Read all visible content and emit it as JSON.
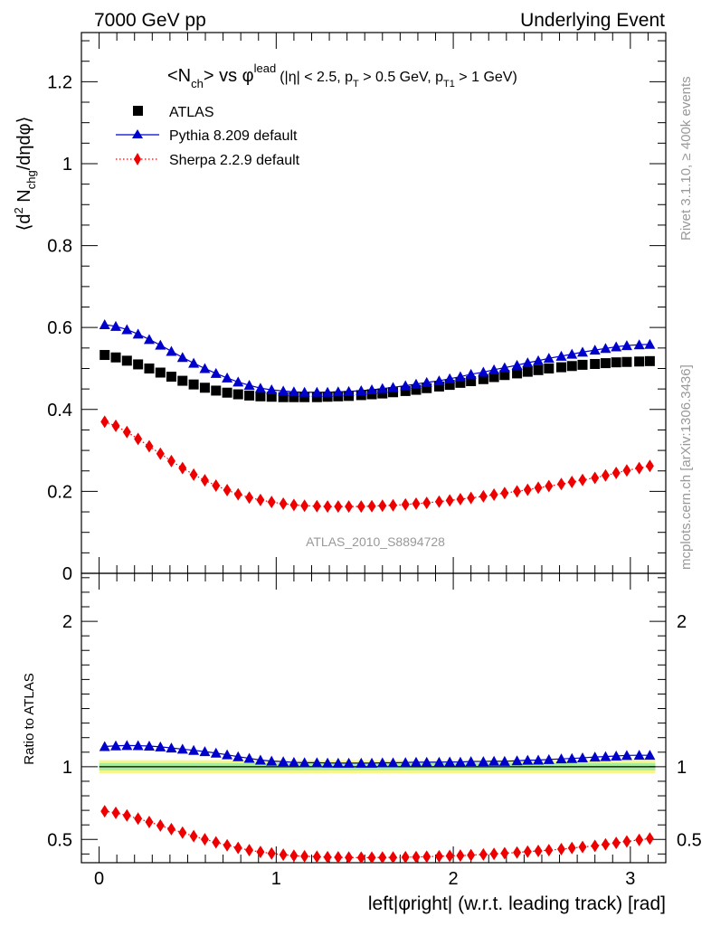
{
  "header": {
    "left": "7000 GeV pp",
    "right": "Underlying Event"
  },
  "plot_title": {
    "main": "<N",
    "main_sub": "ch",
    "main_rest": "> vs φ",
    "main_sup": "lead",
    "cuts_a": "(|η| < 2.5, p",
    "cuts_a_sub": "T",
    "cuts_b": " > 0.5 GeV, p",
    "cuts_b_sub": "T1",
    "cuts_c": " > 1 GeV)"
  },
  "side_labels": {
    "rivet": "Rivet 3.1.10, ≥ 400k events",
    "mcplots": "mcplots.cern.ch [arXiv:1306.3436]"
  },
  "analysis_id": "ATLAS_2010_S8894728",
  "chart_data": [
    {
      "type": "scatter",
      "panel": "main",
      "ylabel": "⟨d² N_chg/dηdφ⟩",
      "xlim": [
        -0.1,
        3.2
      ],
      "ylim": [
        0,
        1.32
      ],
      "yticks": [
        0,
        0.2,
        0.4,
        0.6,
        0.8,
        1,
        1.2
      ],
      "ytick_labels": [
        "0",
        "0.2",
        "0.4",
        "0.6",
        "0.8",
        "1",
        "1.2"
      ],
      "legend": [
        "ATLAS",
        "Pythia 8.209 default",
        "Sherpa 2.2.9 default"
      ],
      "legend_position": "top-left",
      "x": [
        0.0314,
        0.0942,
        0.157,
        0.22,
        0.283,
        0.346,
        0.408,
        0.471,
        0.534,
        0.597,
        0.66,
        0.723,
        0.785,
        0.848,
        0.911,
        0.974,
        1.04,
        1.1,
        1.16,
        1.23,
        1.29,
        1.35,
        1.41,
        1.48,
        1.54,
        1.6,
        1.66,
        1.73,
        1.79,
        1.85,
        1.92,
        1.98,
        2.04,
        2.1,
        2.17,
        2.23,
        2.29,
        2.36,
        2.42,
        2.48,
        2.54,
        2.61,
        2.67,
        2.73,
        2.8,
        2.86,
        2.92,
        2.98,
        3.05,
        3.11
      ],
      "series": [
        {
          "name": "ATLAS",
          "values": [
            0.533,
            0.527,
            0.519,
            0.51,
            0.5,
            0.49,
            0.48,
            0.47,
            0.461,
            0.453,
            0.446,
            0.441,
            0.437,
            0.434,
            0.432,
            0.431,
            0.43,
            0.43,
            0.43,
            0.43,
            0.431,
            0.432,
            0.433,
            0.435,
            0.437,
            0.439,
            0.442,
            0.445,
            0.448,
            0.452,
            0.456,
            0.46,
            0.465,
            0.469,
            0.474,
            0.479,
            0.484,
            0.488,
            0.492,
            0.496,
            0.5,
            0.503,
            0.506,
            0.509,
            0.511,
            0.513,
            0.515,
            0.516,
            0.517,
            0.518
          ]
        },
        {
          "name": "Pythia 8.209 default",
          "values": [
            0.607,
            0.603,
            0.595,
            0.584,
            0.571,
            0.557,
            0.542,
            0.527,
            0.513,
            0.5,
            0.488,
            0.477,
            0.467,
            0.459,
            0.452,
            0.448,
            0.445,
            0.443,
            0.442,
            0.442,
            0.442,
            0.443,
            0.444,
            0.446,
            0.448,
            0.451,
            0.454,
            0.458,
            0.462,
            0.466,
            0.47,
            0.475,
            0.48,
            0.486,
            0.491,
            0.497,
            0.502,
            0.508,
            0.514,
            0.519,
            0.525,
            0.53,
            0.535,
            0.54,
            0.545,
            0.549,
            0.553,
            0.556,
            0.558,
            0.559
          ]
        },
        {
          "name": "Sherpa 2.2.9 default",
          "values": [
            0.37,
            0.36,
            0.345,
            0.328,
            0.31,
            0.292,
            0.274,
            0.257,
            0.241,
            0.227,
            0.214,
            0.203,
            0.193,
            0.185,
            0.179,
            0.174,
            0.17,
            0.167,
            0.165,
            0.164,
            0.163,
            0.163,
            0.163,
            0.163,
            0.164,
            0.165,
            0.166,
            0.168,
            0.17,
            0.172,
            0.175,
            0.178,
            0.181,
            0.184,
            0.188,
            0.192,
            0.196,
            0.2,
            0.204,
            0.209,
            0.213,
            0.218,
            0.223,
            0.228,
            0.233,
            0.239,
            0.245,
            0.251,
            0.257,
            0.262
          ]
        }
      ]
    },
    {
      "type": "scatter",
      "panel": "ratio",
      "ylabel": "Ratio to ATLAS",
      "xlabel": "left|φright| (w.r.t. leading track) [rad]",
      "xlim": [
        -0.1,
        3.2
      ],
      "ylim": [
        0.34,
        2.33
      ],
      "xticks": [
        0,
        1,
        2,
        3
      ],
      "xtick_labels": [
        "0",
        "1",
        "2",
        "3"
      ],
      "yticks": [
        0.5,
        1,
        2
      ],
      "ytick_labels": [
        "0.5",
        "1",
        "2"
      ],
      "band": {
        "inner": [
          0.975,
          1.025
        ],
        "outer": [
          0.955,
          1.045
        ]
      },
      "series": [
        {
          "name": "Pythia 8.209 default",
          "values": [
            1.139,
            1.144,
            1.146,
            1.145,
            1.142,
            1.137,
            1.129,
            1.121,
            1.113,
            1.104,
            1.094,
            1.082,
            1.069,
            1.058,
            1.046,
            1.039,
            1.035,
            1.03,
            1.028,
            1.028,
            1.026,
            1.025,
            1.025,
            1.025,
            1.025,
            1.027,
            1.027,
            1.029,
            1.031,
            1.031,
            1.031,
            1.033,
            1.032,
            1.036,
            1.036,
            1.038,
            1.037,
            1.041,
            1.045,
            1.046,
            1.05,
            1.054,
            1.057,
            1.061,
            1.067,
            1.07,
            1.074,
            1.078,
            1.079,
            1.079
          ]
        },
        {
          "name": "Sherpa 2.2.9 default",
          "values": [
            0.694,
            0.683,
            0.665,
            0.643,
            0.62,
            0.596,
            0.571,
            0.547,
            0.523,
            0.501,
            0.48,
            0.46,
            0.442,
            0.426,
            0.414,
            0.404,
            0.395,
            0.388,
            0.384,
            0.381,
            0.378,
            0.377,
            0.376,
            0.375,
            0.375,
            0.376,
            0.376,
            0.378,
            0.379,
            0.381,
            0.384,
            0.387,
            0.389,
            0.392,
            0.397,
            0.401,
            0.405,
            0.41,
            0.416,
            0.421,
            0.426,
            0.433,
            0.441,
            0.448,
            0.456,
            0.466,
            0.476,
            0.486,
            0.497,
            0.506
          ]
        }
      ]
    }
  ]
}
